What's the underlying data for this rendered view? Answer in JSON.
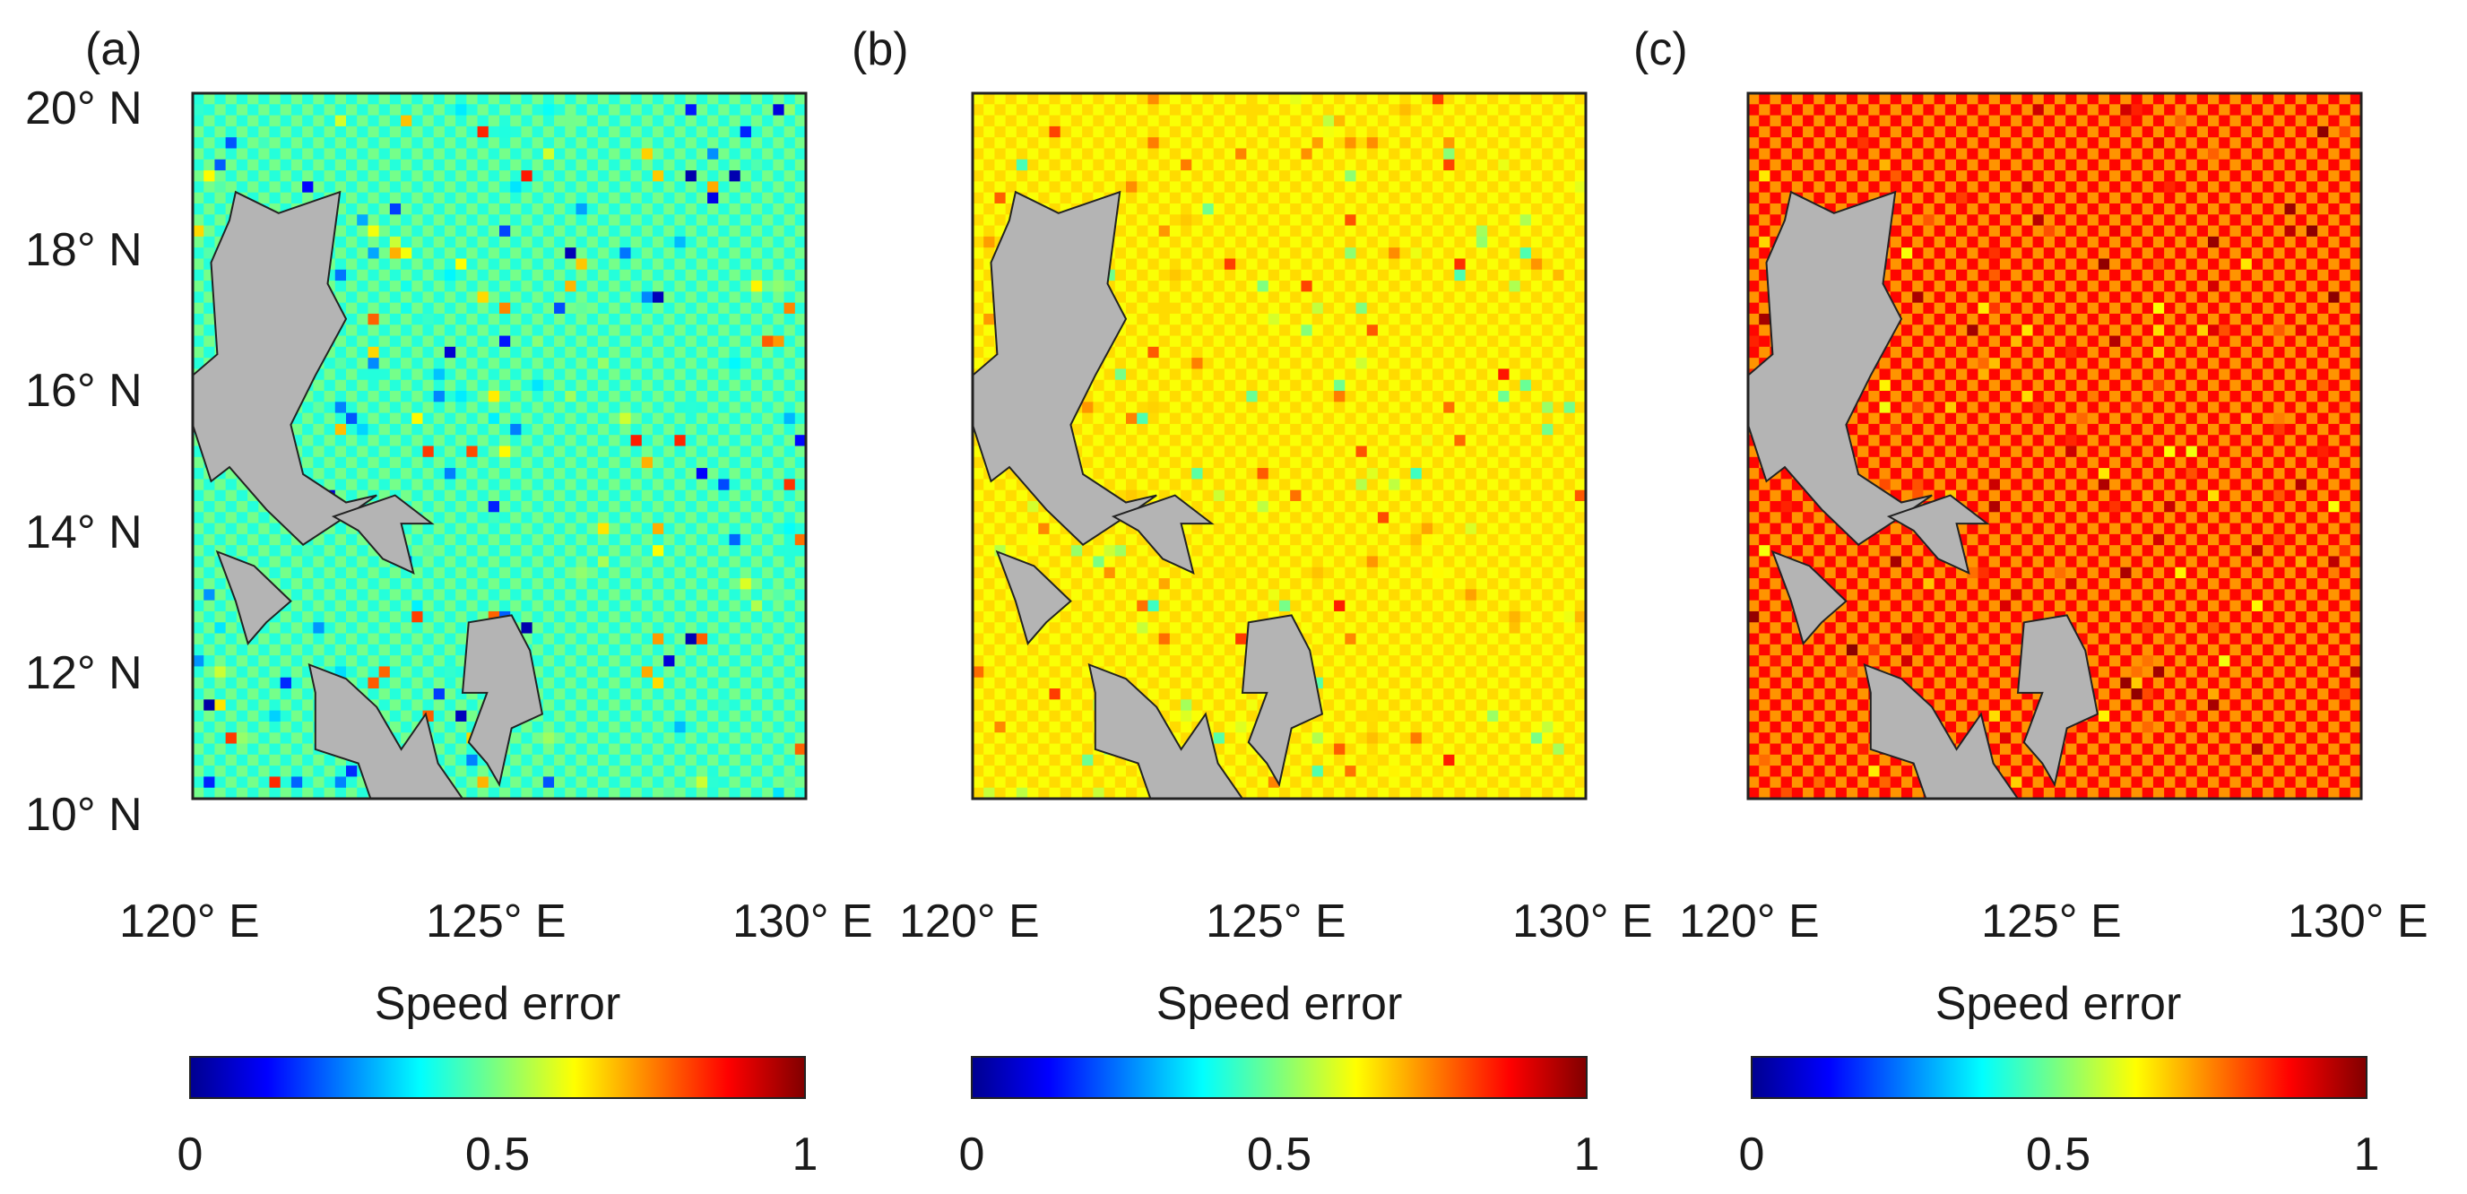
{
  "chart_data": [
    {
      "type": "heatmap",
      "panel_label": "(a)",
      "background_level": 0.45,
      "hotspot_amplitude": 0.38,
      "checker_amplitude": 0.04,
      "xlim": [
        120,
        130
      ],
      "ylim": [
        10,
        20
      ],
      "x_ticks": [
        120,
        125,
        130
      ],
      "y_ticks": [
        10,
        12,
        14,
        16,
        18,
        20
      ],
      "x_tick_labels": [
        "120° E",
        "125° E",
        "130° E"
      ],
      "y_tick_labels": [
        "10° N",
        "12° N",
        "14° N",
        "16° N",
        "18° N",
        "20° N"
      ],
      "colorbar": {
        "label": "Speed error",
        "range": [
          0,
          1
        ],
        "ticks": [
          0,
          0.5,
          1
        ],
        "tick_labels": [
          "0",
          "0.5",
          "1"
        ],
        "colormap": "jet"
      }
    },
    {
      "type": "heatmap",
      "panel_label": "(b)",
      "background_level": 0.64,
      "hotspot_amplitude": 0.2,
      "checker_amplitude": 0.02,
      "xlim": [
        120,
        130
      ],
      "ylim": [
        10,
        20
      ],
      "x_ticks": [
        120,
        125,
        130
      ],
      "x_tick_labels": [
        "120° E",
        "125° E",
        "130° E"
      ],
      "colorbar": {
        "label": "Speed error",
        "range": [
          0,
          1
        ],
        "ticks": [
          0,
          0.5,
          1
        ],
        "tick_labels": [
          "0",
          "0.5",
          "1"
        ],
        "colormap": "jet"
      }
    },
    {
      "type": "heatmap",
      "panel_label": "(c)",
      "background_level": 0.8,
      "hotspot_amplitude": 0.12,
      "checker_amplitude": 0.07,
      "xlim": [
        120,
        130
      ],
      "ylim": [
        10,
        20
      ],
      "x_ticks": [
        120,
        125,
        130
      ],
      "x_tick_labels": [
        "120° E",
        "125° E",
        "130° E"
      ],
      "colorbar": {
        "label": "Speed error",
        "range": [
          0,
          1
        ],
        "ticks": [
          0,
          0.5,
          1
        ],
        "tick_labels": [
          "0",
          "0.5",
          "1"
        ],
        "colormap": "jet"
      }
    }
  ],
  "land_color": "#b4b4b4"
}
